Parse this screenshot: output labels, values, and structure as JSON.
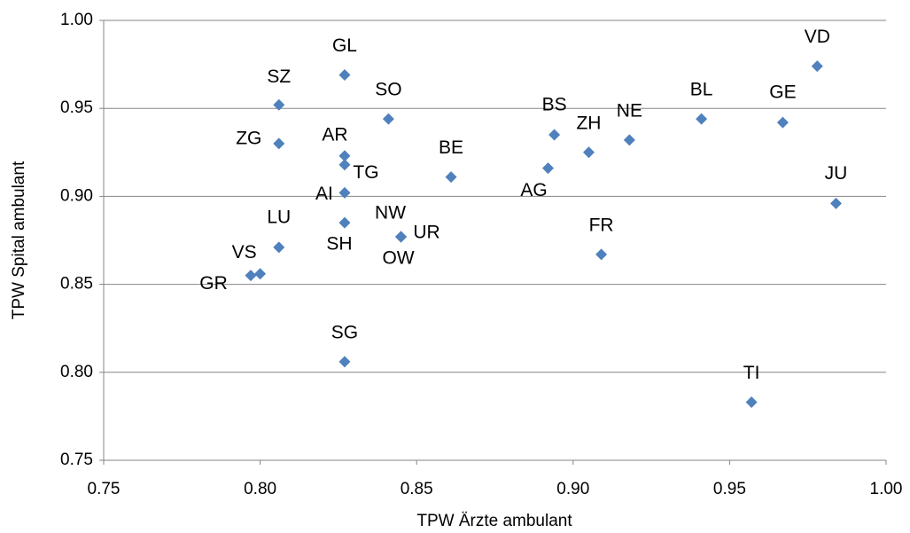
{
  "chart_data": {
    "type": "scatter",
    "x_label": "TPW Ärzte ambulant",
    "y_label": "TPW Spital ambulant",
    "color": "#4f81bd",
    "grid": true,
    "xlim": [
      0.75,
      1.0
    ],
    "ylim": [
      0.75,
      1.0
    ],
    "xticks": [
      {
        "value": 0.75,
        "label": "0.75"
      },
      {
        "value": 0.8,
        "label": "0.80"
      },
      {
        "value": 0.85,
        "label": "0.85"
      },
      {
        "value": 0.9,
        "label": "0.90"
      },
      {
        "value": 0.95,
        "label": "0.95"
      },
      {
        "value": 1.0,
        "label": "1.00"
      }
    ],
    "yticks": [
      {
        "value": 0.75,
        "label": "0.75"
      },
      {
        "value": 0.8,
        "label": "0.80"
      },
      {
        "value": 0.85,
        "label": "0.85"
      },
      {
        "value": 0.9,
        "label": "0.90"
      },
      {
        "value": 0.95,
        "label": "0.95"
      },
      {
        "value": 1.0,
        "label": "1.00"
      }
    ],
    "labels": [
      "GL",
      "SZ",
      "SO",
      "ZG",
      "AR",
      "TG",
      "AI",
      "SH",
      "NW",
      "UR",
      "OW",
      "LU",
      "VS",
      "GR",
      "SG",
      "BE",
      "BS",
      "AG",
      "ZH",
      "NE",
      "FR",
      "BL",
      "GE",
      "VD",
      "JU",
      "TI"
    ],
    "x": [
      0.827,
      0.806,
      0.841,
      0.806,
      0.827,
      0.827,
      0.827,
      0.827,
      0.845,
      0.845,
      0.845,
      0.806,
      0.8,
      0.797,
      0.827,
      0.861,
      0.894,
      0.892,
      0.905,
      0.918,
      0.909,
      0.941,
      0.967,
      0.978,
      0.984,
      0.957
    ],
    "y": [
      0.969,
      0.952,
      0.944,
      0.93,
      0.923,
      0.918,
      0.902,
      0.885,
      0.877,
      0.877,
      0.877,
      0.871,
      0.856,
      0.855,
      0.806,
      0.911,
      0.935,
      0.916,
      0.925,
      0.932,
      0.867,
      0.944,
      0.942,
      0.974,
      0.896,
      0.783
    ]
  }
}
